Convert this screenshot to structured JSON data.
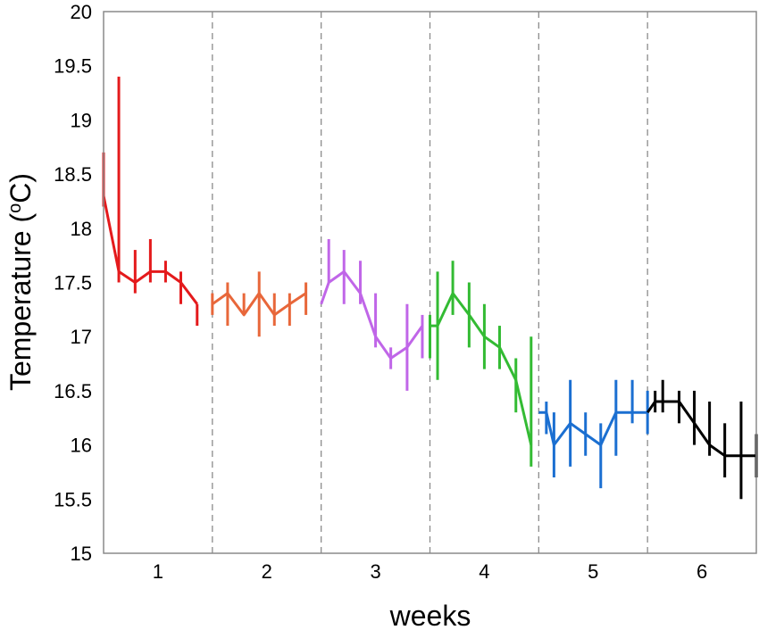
{
  "chart_data": {
    "type": "line",
    "title": "",
    "xlabel": "weeks",
    "ylabel_main": "Temperature (",
    "ylabel_sup": "o",
    "ylabel_unit": "C)",
    "ylim": [
      15,
      20
    ],
    "xlim": [
      0.5,
      6.5
    ],
    "y_ticks": [
      15,
      15.5,
      16,
      16.5,
      17,
      17.5,
      18,
      18.5,
      19,
      19.5,
      20
    ],
    "x_ticks": [
      {
        "x": 1,
        "label": "1"
      },
      {
        "x": 2,
        "label": "2"
      },
      {
        "x": 3,
        "label": "3"
      },
      {
        "x": 4,
        "label": "4"
      },
      {
        "x": 5,
        "label": "5"
      },
      {
        "x": 6,
        "label": "6"
      }
    ],
    "week_separators": [
      1.5,
      2.5,
      3.5,
      4.5,
      5.5
    ],
    "grid": false,
    "error_bars": "vertical",
    "series": [
      {
        "color": "#e41a1c",
        "points": [
          {
            "x": 0.5,
            "y": 18.3,
            "lo": 18.2,
            "hi": 18.7
          },
          {
            "x": 0.64,
            "y": 17.6,
            "lo": 17.5,
            "hi": 19.4
          },
          {
            "x": 0.79,
            "y": 17.5,
            "lo": 17.4,
            "hi": 17.8
          },
          {
            "x": 0.93,
            "y": 17.6,
            "lo": 17.5,
            "hi": 17.9
          },
          {
            "x": 1.07,
            "y": 17.6,
            "lo": 17.5,
            "hi": 17.7
          },
          {
            "x": 1.21,
            "y": 17.5,
            "lo": 17.3,
            "hi": 17.6
          },
          {
            "x": 1.36,
            "y": 17.3,
            "lo": 17.1,
            "hi": 17.3
          }
        ]
      },
      {
        "color": "#e8673a",
        "points": [
          {
            "x": 1.5,
            "y": 17.3,
            "lo": 17.2,
            "hi": 17.4
          },
          {
            "x": 1.64,
            "y": 17.4,
            "lo": 17.1,
            "hi": 17.5
          },
          {
            "x": 1.79,
            "y": 17.2,
            "lo": 17.2,
            "hi": 17.4
          },
          {
            "x": 1.93,
            "y": 17.4,
            "lo": 17.0,
            "hi": 17.6
          },
          {
            "x": 2.07,
            "y": 17.2,
            "lo": 17.1,
            "hi": 17.4
          },
          {
            "x": 2.21,
            "y": 17.3,
            "lo": 17.1,
            "hi": 17.4
          },
          {
            "x": 2.36,
            "y": 17.4,
            "lo": 17.2,
            "hi": 17.5
          }
        ]
      },
      {
        "color": "#c066e8",
        "points": [
          {
            "x": 2.5,
            "y": 17.3,
            "lo": 17.3,
            "hi": 17.3
          },
          {
            "x": 2.57,
            "y": 17.5,
            "lo": 17.5,
            "hi": 17.9
          },
          {
            "x": 2.71,
            "y": 17.6,
            "lo": 17.3,
            "hi": 17.8
          },
          {
            "x": 2.86,
            "y": 17.4,
            "lo": 17.3,
            "hi": 17.7
          },
          {
            "x": 3.0,
            "y": 17.0,
            "lo": 16.9,
            "hi": 17.4
          },
          {
            "x": 3.14,
            "y": 16.8,
            "lo": 16.7,
            "hi": 16.9
          },
          {
            "x": 3.29,
            "y": 16.9,
            "lo": 16.5,
            "hi": 17.3
          },
          {
            "x": 3.43,
            "y": 17.1,
            "lo": 16.8,
            "hi": 17.2
          }
        ]
      },
      {
        "color": "#33bb33",
        "points": [
          {
            "x": 3.5,
            "y": 17.1,
            "lo": 16.8,
            "hi": 17.2
          },
          {
            "x": 3.57,
            "y": 17.1,
            "lo": 16.6,
            "hi": 17.6
          },
          {
            "x": 3.71,
            "y": 17.4,
            "lo": 17.2,
            "hi": 17.7
          },
          {
            "x": 3.86,
            "y": 17.2,
            "lo": 16.9,
            "hi": 17.5
          },
          {
            "x": 4.0,
            "y": 17.0,
            "lo": 16.7,
            "hi": 17.3
          },
          {
            "x": 4.14,
            "y": 16.9,
            "lo": 16.7,
            "hi": 17.1
          },
          {
            "x": 4.29,
            "y": 16.6,
            "lo": 16.3,
            "hi": 16.8
          },
          {
            "x": 4.43,
            "y": 16.0,
            "lo": 15.8,
            "hi": 17.0
          }
        ]
      },
      {
        "color": "#1b6fd1",
        "points": [
          {
            "x": 4.5,
            "y": 16.3,
            "lo": 16.3,
            "hi": 16.3
          },
          {
            "x": 4.57,
            "y": 16.3,
            "lo": 16.1,
            "hi": 16.4
          },
          {
            "x": 4.64,
            "y": 16.0,
            "lo": 15.7,
            "hi": 16.3
          },
          {
            "x": 4.79,
            "y": 16.2,
            "lo": 15.8,
            "hi": 16.6
          },
          {
            "x": 4.93,
            "y": 16.1,
            "lo": 15.9,
            "hi": 16.3
          },
          {
            "x": 5.07,
            "y": 16.0,
            "lo": 15.6,
            "hi": 16.2
          },
          {
            "x": 5.21,
            "y": 16.3,
            "lo": 15.9,
            "hi": 16.6
          },
          {
            "x": 5.36,
            "y": 16.3,
            "lo": 16.2,
            "hi": 16.6
          },
          {
            "x": 5.5,
            "y": 16.3,
            "lo": 16.1,
            "hi": 16.5
          }
        ]
      },
      {
        "color": "#000000",
        "points": [
          {
            "x": 5.5,
            "y": 16.3,
            "lo": 16.3,
            "hi": 16.3
          },
          {
            "x": 5.57,
            "y": 16.4,
            "lo": 16.3,
            "hi": 16.5
          },
          {
            "x": 5.64,
            "y": 16.4,
            "lo": 16.3,
            "hi": 16.6
          },
          {
            "x": 5.79,
            "y": 16.4,
            "lo": 16.2,
            "hi": 16.5
          },
          {
            "x": 5.93,
            "y": 16.2,
            "lo": 16.0,
            "hi": 16.5
          },
          {
            "x": 6.07,
            "y": 16.0,
            "lo": 15.9,
            "hi": 16.4
          },
          {
            "x": 6.21,
            "y": 15.9,
            "lo": 15.7,
            "hi": 16.2
          },
          {
            "x": 6.36,
            "y": 15.9,
            "lo": 15.5,
            "hi": 16.4
          },
          {
            "x": 6.5,
            "y": 15.9,
            "lo": 15.7,
            "hi": 16.1
          }
        ]
      }
    ]
  }
}
